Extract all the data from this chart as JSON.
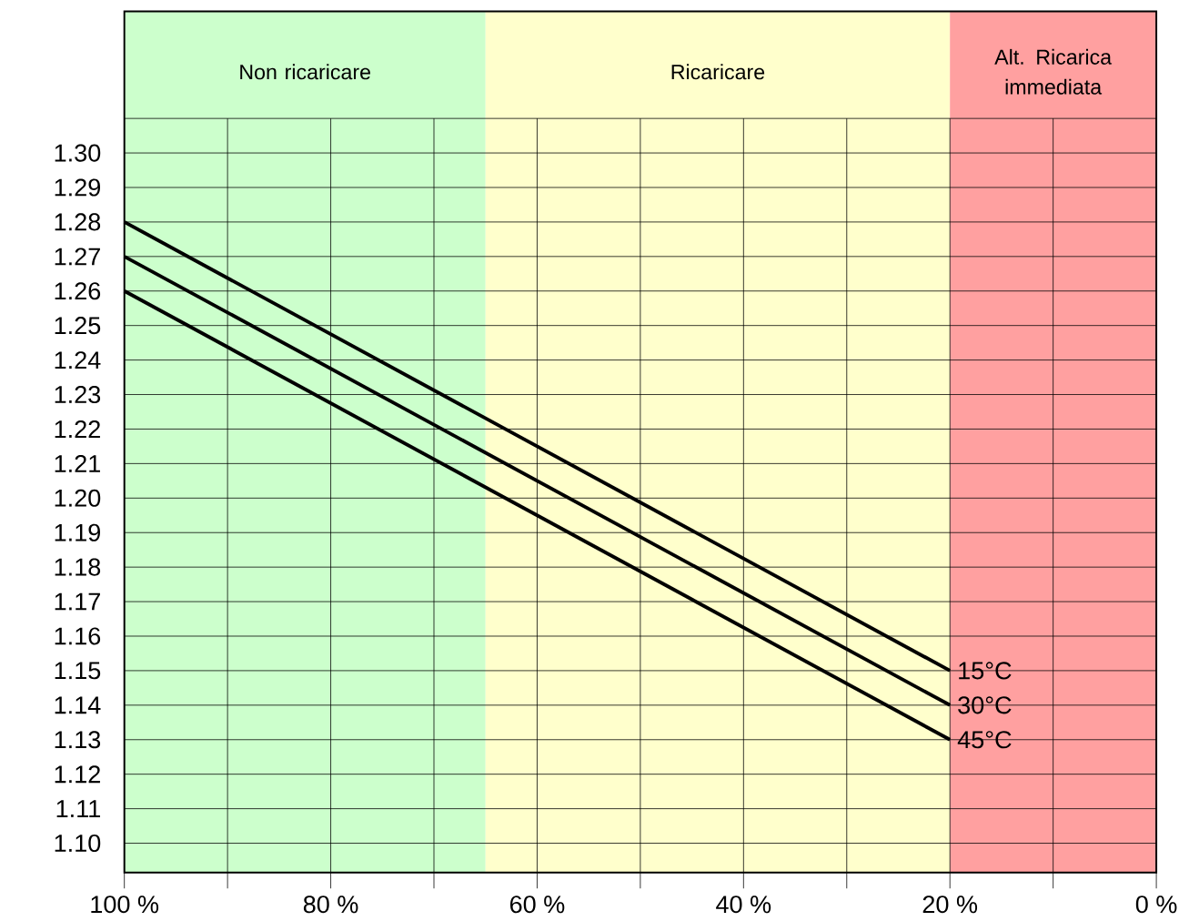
{
  "chart_data": {
    "type": "line",
    "x": [
      100,
      20
    ],
    "series": [
      {
        "name": "15°C",
        "color": "#000000",
        "values": [
          1.28,
          1.15
        ]
      },
      {
        "name": "30°C",
        "color": "#000000",
        "values": [
          1.27,
          1.14
        ]
      },
      {
        "name": "45°C",
        "color": "#000000",
        "values": [
          1.26,
          1.13
        ]
      }
    ],
    "xlim": [
      100,
      0
    ],
    "xticks": [
      {
        "value": 100,
        "label": "100 %"
      },
      {
        "value": 90,
        "label": null
      },
      {
        "value": 80,
        "label": "80 %"
      },
      {
        "value": 70,
        "label": null
      },
      {
        "value": 60,
        "label": "60 %"
      },
      {
        "value": 50,
        "label": null
      },
      {
        "value": 40,
        "label": "40 %"
      },
      {
        "value": 30,
        "label": null
      },
      {
        "value": 20,
        "label": "20 %"
      },
      {
        "value": 10,
        "label": null
      },
      {
        "value": 0,
        "label": "0 %"
      }
    ],
    "ylim": [
      1.0915,
      1.341
    ],
    "yticks": [
      {
        "value": 1.1,
        "label": "1.10"
      },
      {
        "value": 1.11,
        "label": "1.11"
      },
      {
        "value": 1.12,
        "label": "1.12"
      },
      {
        "value": 1.13,
        "label": "1.13"
      },
      {
        "value": 1.14,
        "label": "1.14"
      },
      {
        "value": 1.15,
        "label": "1.15"
      },
      {
        "value": 1.16,
        "label": "1.16"
      },
      {
        "value": 1.17,
        "label": "1.17"
      },
      {
        "value": 1.18,
        "label": "1.18"
      },
      {
        "value": 1.19,
        "label": "1.19"
      },
      {
        "value": 1.2,
        "label": "1.20"
      },
      {
        "value": 1.21,
        "label": "1.21"
      },
      {
        "value": 1.22,
        "label": "1.22"
      },
      {
        "value": 1.23,
        "label": "1.23"
      },
      {
        "value": 1.24,
        "label": "1.24"
      },
      {
        "value": 1.25,
        "label": "1.25"
      },
      {
        "value": 1.26,
        "label": "1.26"
      },
      {
        "value": 1.27,
        "label": "1.27"
      },
      {
        "value": 1.28,
        "label": "1.28"
      },
      {
        "value": 1.29,
        "label": "1.29"
      },
      {
        "value": 1.3,
        "label": "1.30"
      },
      {
        "value": 1.31,
        "label": null
      }
    ],
    "grid": true,
    "line_style": "solid",
    "bands": [
      {
        "axis": "x",
        "from": 100,
        "to": 65,
        "label": "Non ricaricare",
        "color": "#ccffcc"
      },
      {
        "axis": "x",
        "from": 65,
        "to": 20,
        "label": "Ricaricare",
        "color": "#ffffcc"
      },
      {
        "axis": "x",
        "from": 20,
        "to": 0,
        "label": "Alt. Ricarica immediata",
        "color": "#ffa0a0"
      }
    ]
  }
}
